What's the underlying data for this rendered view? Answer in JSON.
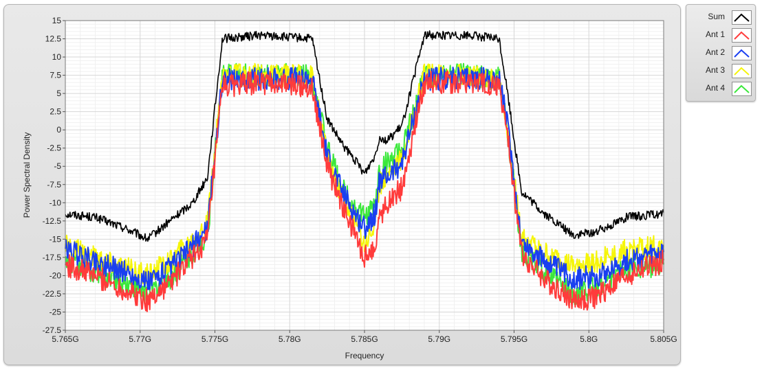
{
  "chart_data": {
    "type": "line",
    "xlabel": "Frequency",
    "ylabel": "Power Spectral Density",
    "xlim": [
      5.765,
      5.805
    ],
    "ylim": [
      -27.5,
      15
    ],
    "x_ticks": [
      5.765,
      5.77,
      5.775,
      5.78,
      5.785,
      5.79,
      5.795,
      5.8,
      5.805
    ],
    "x_tick_labels": [
      "5.765G",
      "5.77G",
      "5.775G",
      "5.78G",
      "5.785G",
      "5.79G",
      "5.795G",
      "5.8G",
      "5.805G"
    ],
    "y_ticks": [
      15,
      12.5,
      10,
      7.5,
      5,
      2.5,
      0,
      -2.5,
      -5,
      -7.5,
      -10,
      -12.5,
      -15,
      -17.5,
      -20,
      -22.5,
      -25,
      -27.5
    ],
    "y_tick_labels": [
      "15",
      "12.5",
      "10",
      "7.5",
      "5",
      "2.5",
      "0",
      "-2.5",
      "-5",
      "-7.5",
      "-10",
      "-12.5",
      "-15",
      "-17.5",
      "-20",
      "-22.5",
      "-25",
      "-27.5"
    ],
    "grid": true,
    "legend_position": "outside-right",
    "series": [
      {
        "name": "Sum",
        "color": "#000000",
        "x": [
          5.765,
          5.767,
          5.769,
          5.7705,
          5.772,
          5.7735,
          5.7745,
          5.7755,
          5.778,
          5.7815,
          5.7825,
          5.7835,
          5.7845,
          5.785,
          5.7857,
          5.786,
          5.7865,
          5.7875,
          5.789,
          5.792,
          5.794,
          5.7945,
          5.7955,
          5.797,
          5.799,
          5.8005,
          5.8025,
          5.805
        ],
        "y": [
          -11.5,
          -12.0,
          -13.5,
          -15.0,
          -12.5,
          -10.0,
          -6.5,
          12.5,
          13.0,
          12.5,
          1.5,
          -2.0,
          -4.5,
          -6.0,
          -3.5,
          -1.0,
          -1.5,
          0.5,
          13.0,
          13.0,
          12.5,
          6.0,
          -8.5,
          -11.5,
          -14.5,
          -14.0,
          -12.0,
          -11.5
        ]
      },
      {
        "name": "Ant 1",
        "color": "#ff3b3b",
        "x": [
          5.765,
          5.767,
          5.769,
          5.7705,
          5.772,
          5.7735,
          5.7745,
          5.7755,
          5.778,
          5.7815,
          5.7825,
          5.7835,
          5.7845,
          5.785,
          5.7857,
          5.786,
          5.7865,
          5.7875,
          5.789,
          5.792,
          5.794,
          5.7945,
          5.7955,
          5.797,
          5.799,
          5.8005,
          5.8025,
          5.805
        ],
        "y": [
          -18.5,
          -20.0,
          -22.0,
          -23.5,
          -21.0,
          -17.5,
          -15.0,
          6.0,
          6.5,
          6.0,
          -5.0,
          -10.5,
          -15.0,
          -17.5,
          -16.0,
          -12.0,
          -10.0,
          -8.0,
          6.5,
          6.5,
          6.0,
          0.0,
          -17.0,
          -20.5,
          -23.5,
          -23.0,
          -20.0,
          -18.0
        ]
      },
      {
        "name": "Ant 2",
        "color": "#1a3ff0",
        "x": [
          5.765,
          5.767,
          5.769,
          5.7705,
          5.772,
          5.7735,
          5.7745,
          5.7755,
          5.778,
          5.7815,
          5.7825,
          5.7835,
          5.7845,
          5.785,
          5.7857,
          5.786,
          5.7865,
          5.7875,
          5.789,
          5.792,
          5.794,
          5.7945,
          5.7955,
          5.797,
          5.799,
          5.8005,
          5.8025,
          5.805
        ],
        "y": [
          -16.5,
          -18.0,
          -19.5,
          -21.0,
          -19.0,
          -16.0,
          -13.5,
          7.0,
          7.0,
          7.0,
          -3.5,
          -8.5,
          -12.0,
          -13.5,
          -11.5,
          -7.0,
          -6.5,
          -4.5,
          7.0,
          7.0,
          7.0,
          1.5,
          -15.5,
          -18.0,
          -20.5,
          -20.0,
          -18.0,
          -17.0
        ]
      },
      {
        "name": "Ant 3",
        "color": "#f5f50a",
        "x": [
          5.765,
          5.767,
          5.769,
          5.7705,
          5.772,
          5.7735,
          5.7745,
          5.7755,
          5.778,
          5.7815,
          5.7825,
          5.7835,
          5.7845,
          5.785,
          5.7857,
          5.786,
          5.7865,
          5.7875,
          5.789,
          5.792,
          5.794,
          5.7945,
          5.7955,
          5.797,
          5.799,
          5.8005,
          5.8025,
          5.805
        ],
        "y": [
          -16.0,
          -17.5,
          -19.0,
          -20.0,
          -18.0,
          -15.0,
          -13.0,
          7.5,
          7.5,
          7.5,
          -3.5,
          -9.0,
          -13.0,
          -15.5,
          -13.0,
          -7.5,
          -6.0,
          -4.0,
          7.5,
          7.5,
          7.0,
          1.0,
          -15.0,
          -17.0,
          -19.0,
          -18.0,
          -16.5,
          -16.0
        ]
      },
      {
        "name": "Ant 4",
        "color": "#3be83b",
        "x": [
          5.765,
          5.767,
          5.769,
          5.7705,
          5.772,
          5.7735,
          5.7745,
          5.7755,
          5.778,
          5.7815,
          5.7825,
          5.7835,
          5.7845,
          5.785,
          5.7857,
          5.786,
          5.7865,
          5.7875,
          5.789,
          5.792,
          5.794,
          5.7945,
          5.7955,
          5.797,
          5.799,
          5.8005,
          5.8025,
          5.805
        ],
        "y": [
          -18.0,
          -19.5,
          -21.0,
          -22.5,
          -20.5,
          -17.0,
          -14.5,
          7.5,
          7.5,
          7.5,
          -2.5,
          -8.0,
          -11.0,
          -12.0,
          -10.5,
          -5.5,
          -4.5,
          -3.0,
          7.5,
          7.5,
          7.0,
          1.0,
          -16.5,
          -19.5,
          -22.5,
          -21.5,
          -19.0,
          -18.5
        ]
      }
    ]
  },
  "legend": {
    "items": [
      {
        "label": "Sum",
        "color": "#000000"
      },
      {
        "label": "Ant 1",
        "color": "#ff3b3b"
      },
      {
        "label": "Ant 2",
        "color": "#1a3ff0"
      },
      {
        "label": "Ant 3",
        "color": "#f5f50a"
      },
      {
        "label": "Ant 4",
        "color": "#3be83b"
      }
    ]
  }
}
